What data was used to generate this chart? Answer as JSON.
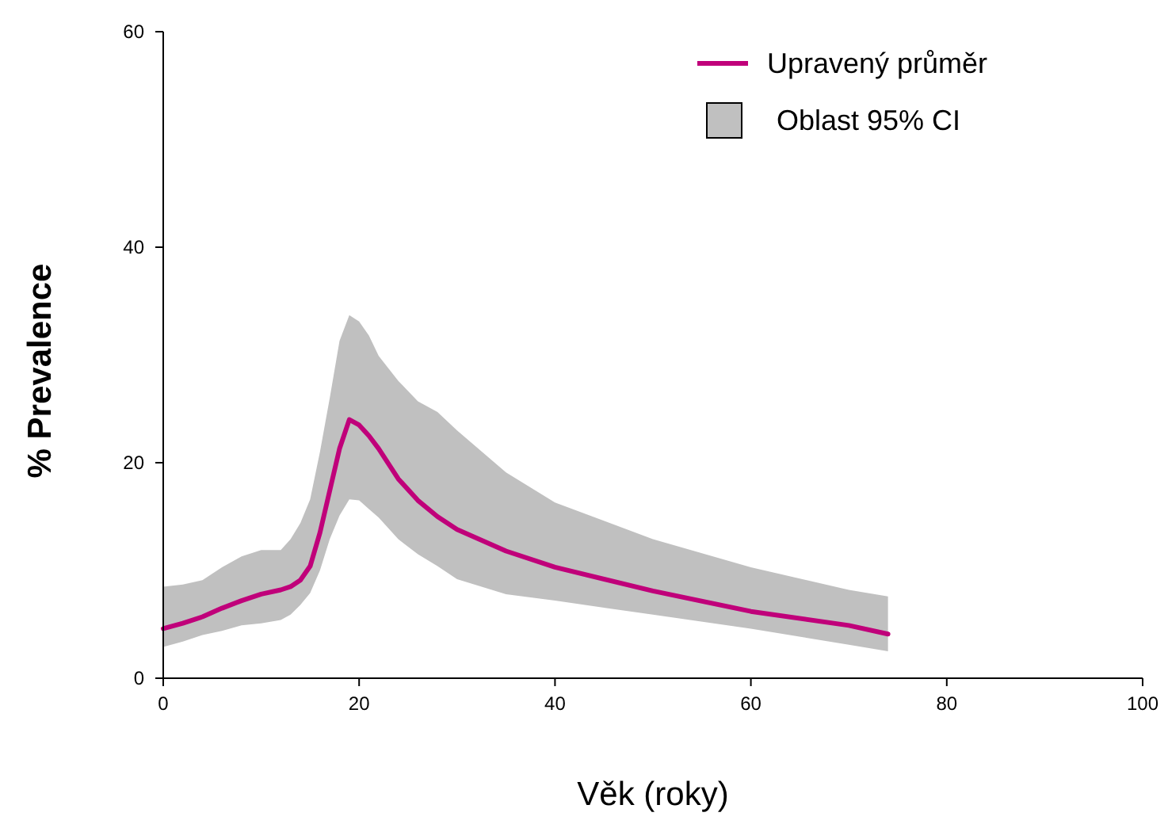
{
  "chart_data": {
    "type": "line",
    "xlabel": "Věk (roky)",
    "ylabel": "% Prevalence",
    "xlim": [
      0,
      100
    ],
    "ylim": [
      0,
      60
    ],
    "xticks": [
      0,
      20,
      40,
      60,
      80,
      100
    ],
    "yticks": [
      0,
      20,
      40,
      60
    ],
    "grid": false,
    "legend": "top right",
    "marker": "none",
    "line_style": "solid",
    "annotations": [
      "Oblast 95% CI"
    ],
    "x": [
      0,
      2,
      4,
      6,
      8,
      10,
      12,
      13,
      14,
      15,
      16,
      17,
      18,
      19,
      20,
      21,
      22,
      24,
      26,
      28,
      30,
      35,
      40,
      50,
      60,
      70,
      74
    ],
    "series": [
      {
        "name": "Upravený průměr",
        "color": "#c0007a",
        "values": [
          4.6,
          5.1,
          5.7,
          6.5,
          7.2,
          7.8,
          8.2,
          8.5,
          9.1,
          10.4,
          13.5,
          17.4,
          21.3,
          24.0,
          23.5,
          22.5,
          21.3,
          18.5,
          16.5,
          15.0,
          13.8,
          11.8,
          10.3,
          8.1,
          6.2,
          4.9,
          4.1
        ],
        "lower": [
          2.9,
          3.4,
          4.0,
          4.4,
          4.9,
          5.1,
          5.4,
          5.9,
          6.8,
          7.9,
          10.0,
          12.9,
          15.1,
          16.6,
          16.5,
          15.7,
          14.9,
          12.9,
          11.5,
          10.4,
          9.2,
          7.8,
          7.2,
          5.9,
          4.6,
          3.1,
          2.5
        ],
        "upper": [
          8.5,
          8.7,
          9.1,
          10.3,
          11.3,
          11.9,
          11.9,
          12.9,
          14.4,
          16.6,
          21.0,
          26.0,
          31.3,
          33.7,
          33.1,
          31.8,
          29.9,
          27.6,
          25.7,
          24.7,
          23.0,
          19.1,
          16.3,
          12.9,
          10.3,
          8.2,
          7.6
        ]
      }
    ]
  }
}
